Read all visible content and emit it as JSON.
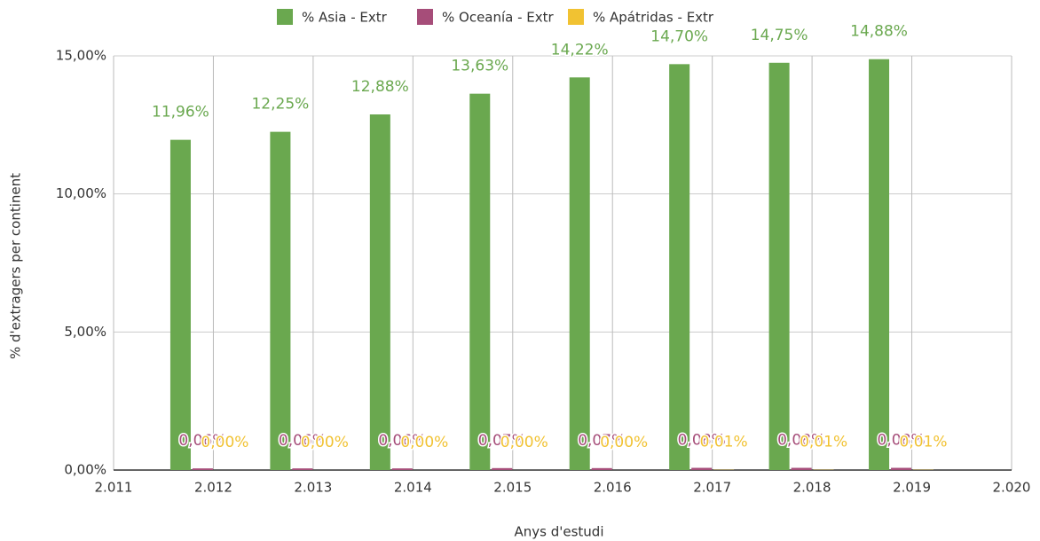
{
  "chart_data": {
    "type": "bar",
    "x_label": "Anys d'estudi",
    "y_label": "% d'extragers per continent",
    "x": [
      2012,
      2013,
      2014,
      2015,
      2016,
      2017,
      2018,
      2019
    ],
    "xlim": [
      2011,
      2020
    ],
    "xticks": [
      {
        "value": 2011,
        "label": "2.011"
      },
      {
        "value": 2012,
        "label": "2.012"
      },
      {
        "value": 2013,
        "label": "2.013"
      },
      {
        "value": 2014,
        "label": "2.014"
      },
      {
        "value": 2015,
        "label": "2.015"
      },
      {
        "value": 2016,
        "label": "2.016"
      },
      {
        "value": 2017,
        "label": "2.017"
      },
      {
        "value": 2018,
        "label": "2.018"
      },
      {
        "value": 2019,
        "label": "2.019"
      },
      {
        "value": 2020,
        "label": "2.020"
      }
    ],
    "ylim": [
      0,
      15
    ],
    "yticks": [
      {
        "value": 0,
        "label": "0,00%"
      },
      {
        "value": 5,
        "label": "5,00%"
      },
      {
        "value": 10,
        "label": "10,00%"
      },
      {
        "value": 15,
        "label": "15,00%"
      }
    ],
    "grid": true,
    "legend": "top",
    "series": [
      {
        "name": "% Asia - Extr",
        "color": "#6aa84f",
        "values": [
          11.96,
          12.25,
          12.88,
          13.63,
          14.22,
          14.7,
          14.75,
          14.88
        ],
        "value_labels": [
          "11,96%",
          "12,25%",
          "12,88%",
          "13,63%",
          "14,22%",
          "14,70%",
          "14,75%",
          "14,88%"
        ]
      },
      {
        "name": "% Oceanía - Extr",
        "color": "#a64d79",
        "values": [
          0.06,
          0.06,
          0.06,
          0.07,
          0.07,
          0.08,
          0.08,
          0.08
        ],
        "value_labels": [
          "0,06%",
          "0,06%",
          "0,06%",
          "0,07%",
          "0,07%",
          "0,08%",
          "0,08%",
          "0,08%"
        ]
      },
      {
        "name": "% Apátridas - Extr",
        "color": "#f1c232",
        "values": [
          0.0,
          0.0,
          0.0,
          0.0,
          0.0,
          0.01,
          0.01,
          0.01
        ],
        "value_labels": [
          "0,00%",
          "0,00%",
          "0,00%",
          "0,00%",
          "0,00%",
          "0,01%",
          "0,01%",
          "0,01%"
        ]
      }
    ]
  }
}
